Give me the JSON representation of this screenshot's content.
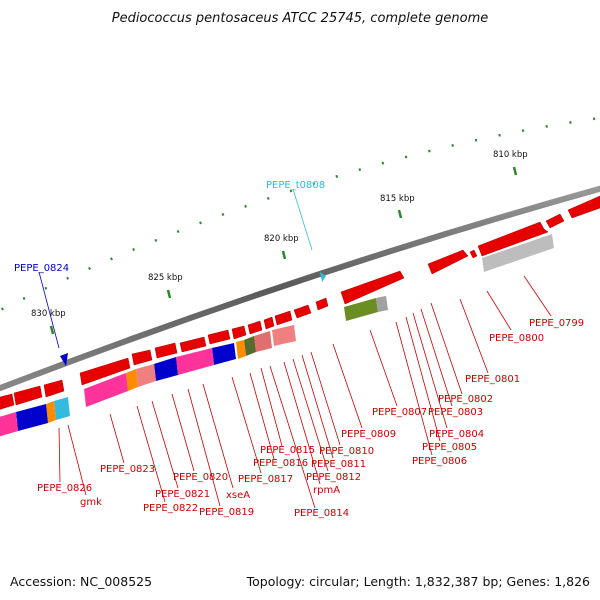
{
  "title": "Pediococcus pentosaceus ATCC 25745, complete genome",
  "footer": {
    "accession": "Accession: NC_008525",
    "stats": "Topology: circular; Length: 1,832,387 bp; Genes: 1,826"
  },
  "colors": {
    "backbone": "#6e6e6e",
    "gene_red": "#e60000",
    "label_red": "#cc0000",
    "trna": "#33bbdd",
    "blue_gene": "#0000cc",
    "tick_green": "#2a8a2a"
  },
  "scale_labels": [
    "810 kbp",
    "815 kbp",
    "820 kbp",
    "825 kbp",
    "830 kbp"
  ],
  "gene_labels": [
    "PEPE_0799",
    "PEPE_0800",
    "PEPE_0801",
    "PEPE_0802",
    "PEPE_0803",
    "PEPE_0804",
    "PEPE_0805",
    "PEPE_0806",
    "PEPE_0807",
    "PEPE_0809",
    "PEPE_0810",
    "PEPE_0811",
    "PEPE_0812",
    "rpmA",
    "PEPE_0814",
    "PEPE_0815",
    "PEPE_0816",
    "PEPE_0817",
    "xseA",
    "PEPE_0819",
    "PEPE_0820",
    "PEPE_0821",
    "PEPE_0822",
    "PEPE_0823",
    "gmk",
    "PEPE_0826"
  ],
  "trna_label": "PEPE_t0808",
  "blue_label": "PEPE_0824"
}
